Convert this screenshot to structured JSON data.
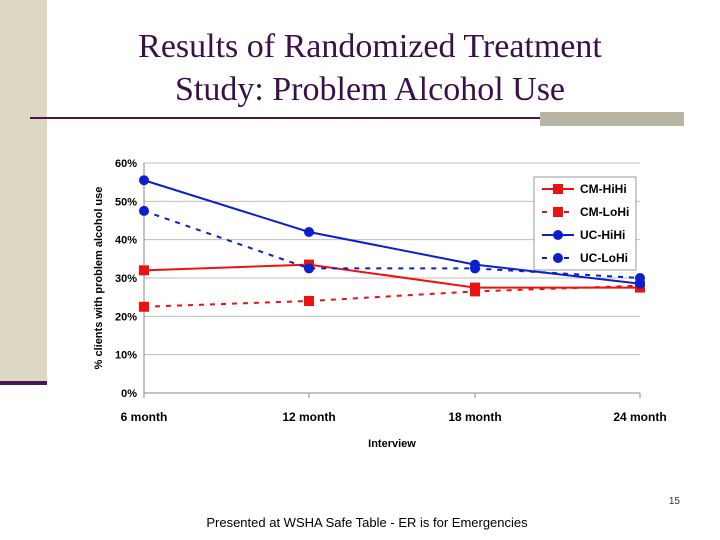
{
  "slide": {
    "title_line1": "Results of Randomized Treatment",
    "title_line2": "Study: Problem Alcohol Use",
    "slide_number": "15",
    "footer": "Presented at WSHA Safe Table - ER is for Emergencies"
  },
  "chart_data": {
    "type": "line",
    "title": "",
    "xlabel": "Interview",
    "ylabel": "% clients with problem alcohol use",
    "categories": [
      "6 month",
      "12 month",
      "18 month",
      "24 month"
    ],
    "ylim": [
      0,
      60
    ],
    "yticks": [
      "0%",
      "10%",
      "20%",
      "30%",
      "40%",
      "50%",
      "60%"
    ],
    "grid": true,
    "legend_position": "right",
    "series": [
      {
        "name": "CM-HiHi",
        "values": [
          32,
          33.5,
          27.5,
          27.5
        ],
        "color": "#ee1111",
        "dash": "solid",
        "marker": "square"
      },
      {
        "name": "CM-LoHi",
        "values": [
          22.5,
          24,
          26.5,
          28
        ],
        "color": "#ee1111",
        "dash": "dashed",
        "marker": "square"
      },
      {
        "name": "UC-HiHi",
        "values": [
          55.5,
          42,
          33.5,
          28.5
        ],
        "color": "#0b1fcc",
        "dash": "solid",
        "marker": "circle"
      },
      {
        "name": "UC-LoHi",
        "values": [
          47.5,
          32.5,
          32.5,
          30
        ],
        "color": "#0b1fcc",
        "dash": "dashed",
        "marker": "circle"
      }
    ]
  }
}
